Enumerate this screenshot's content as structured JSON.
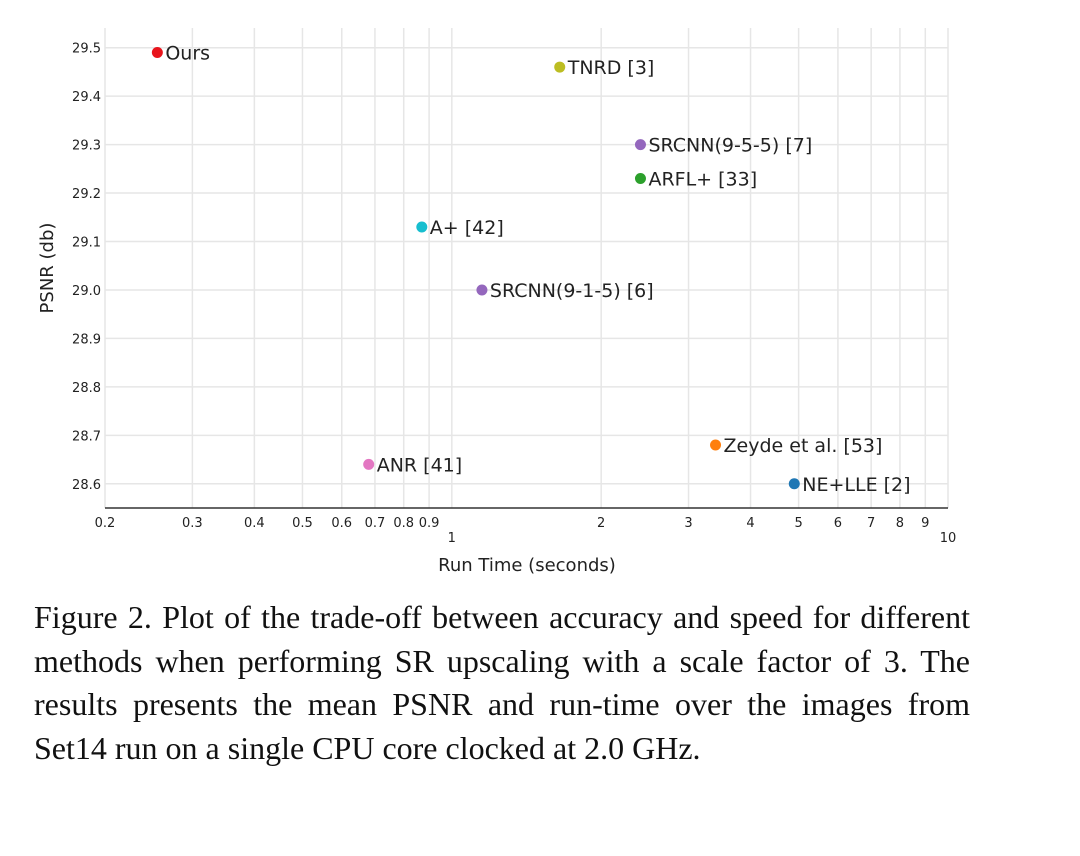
{
  "chart_data": {
    "type": "scatter",
    "title": "",
    "xlabel": "Run Time (seconds)",
    "ylabel": "PSNR (db)",
    "x_scale": "log",
    "xlim": [
      0.2,
      10
    ],
    "ylim": [
      28.55,
      29.52
    ],
    "grid": true,
    "x_ticks": [
      {
        "value": 0.2,
        "label": "0.2"
      },
      {
        "value": 0.3,
        "label": "0.3"
      },
      {
        "value": 0.4,
        "label": "0.4"
      },
      {
        "value": 0.5,
        "label": "0.5"
      },
      {
        "value": 0.6,
        "label": "0.6"
      },
      {
        "value": 0.7,
        "label": "0.7"
      },
      {
        "value": 0.8,
        "label": "0.8"
      },
      {
        "value": 0.9,
        "label": "0.9"
      },
      {
        "value": 1,
        "label": "1",
        "major": true
      },
      {
        "value": 2,
        "label": "2"
      },
      {
        "value": 3,
        "label": "3"
      },
      {
        "value": 4,
        "label": "4"
      },
      {
        "value": 5,
        "label": "5"
      },
      {
        "value": 6,
        "label": "6"
      },
      {
        "value": 7,
        "label": "7"
      },
      {
        "value": 8,
        "label": "8"
      },
      {
        "value": 9,
        "label": "9"
      },
      {
        "value": 10,
        "label": "10",
        "major": true
      }
    ],
    "y_ticks": [
      {
        "value": 28.6,
        "label": "28.6"
      },
      {
        "value": 28.7,
        "label": "28.7"
      },
      {
        "value": 28.8,
        "label": "28.8"
      },
      {
        "value": 28.9,
        "label": "28.9"
      },
      {
        "value": 29.0,
        "label": "29.0"
      },
      {
        "value": 29.1,
        "label": "29.1"
      },
      {
        "value": 29.2,
        "label": "29.2"
      },
      {
        "value": 29.3,
        "label": "29.3"
      },
      {
        "value": 29.4,
        "label": "29.4"
      },
      {
        "value": 29.5,
        "label": "29.5"
      }
    ],
    "points": [
      {
        "label": "Ours",
        "x": 0.255,
        "y": 29.49,
        "color": "#e8141c"
      },
      {
        "label": "TNRD [3]",
        "x": 1.65,
        "y": 29.46,
        "color": "#bcbd22"
      },
      {
        "label": "SRCNN(9-5-5) [7]",
        "x": 2.4,
        "y": 29.3,
        "color": "#9467bd"
      },
      {
        "label": "ARFL+ [33]",
        "x": 2.4,
        "y": 29.23,
        "color": "#2ca02c"
      },
      {
        "label": "A+ [42]",
        "x": 0.87,
        "y": 29.13,
        "color": "#17becf"
      },
      {
        "label": "SRCNN(9-1-5) [6]",
        "x": 1.15,
        "y": 29.0,
        "color": "#9467bd"
      },
      {
        "label": "Zeyde et al. [53]",
        "x": 3.4,
        "y": 28.68,
        "color": "#ff7f0e"
      },
      {
        "label": "ANR [41]",
        "x": 0.68,
        "y": 28.64,
        "color": "#e377c2"
      },
      {
        "label": "NE+LLE [2]",
        "x": 4.9,
        "y": 28.6,
        "color": "#1f77b4"
      }
    ]
  },
  "caption": "Figure 2. Plot of the trade-off between accuracy and speed for different methods when performing SR upscaling with a scale factor of 3. The results presents the mean PSNR and run-time over the images from Set14 run on a single CPU core clocked at 2.0 GHz."
}
